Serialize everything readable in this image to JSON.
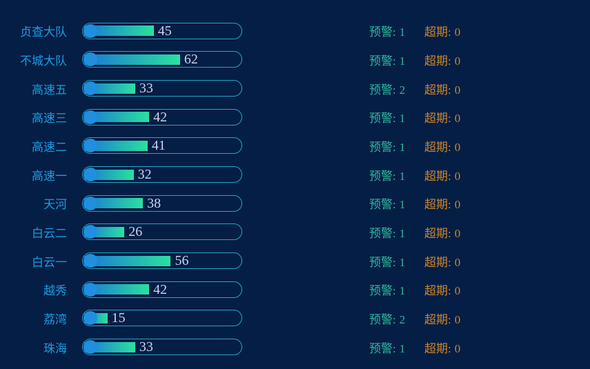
{
  "page": {
    "background": "#051e45"
  },
  "labels": {
    "warning": "预警:",
    "overdue": "超期:"
  },
  "colors": {
    "background": "#051e45",
    "category_text": "#1c9ce0",
    "bar_border": "#26a5c3",
    "bar_fill_start": "#1a77d4",
    "bar_fill_end": "#2be0a0",
    "bar_cap": "#208fe0",
    "value_text": "#c9d3ee",
    "warning_text": "#2eb89c",
    "overdue_text": "#c9862d"
  },
  "chart_data": {
    "type": "bar",
    "orientation": "horizontal",
    "categories": [
      "贞查大队",
      "不城大队",
      "高速五",
      "高速三",
      "高速二",
      "高速一",
      "天河",
      "白云二",
      "白云一",
      "越秀",
      "荔湾",
      "珠海"
    ],
    "values": [
      45,
      62,
      33,
      42,
      41,
      32,
      38,
      26,
      56,
      42,
      15,
      33
    ],
    "series": [
      {
        "name": "预警",
        "values": [
          1,
          1,
          2,
          1,
          1,
          1,
          1,
          1,
          1,
          1,
          2,
          1
        ]
      },
      {
        "name": "超期",
        "values": [
          0,
          0,
          0,
          0,
          0,
          0,
          0,
          0,
          0,
          0,
          0,
          0
        ]
      }
    ],
    "xlim": [
      0,
      100
    ],
    "grid": false,
    "legend": false,
    "value_labels_shown": true
  }
}
